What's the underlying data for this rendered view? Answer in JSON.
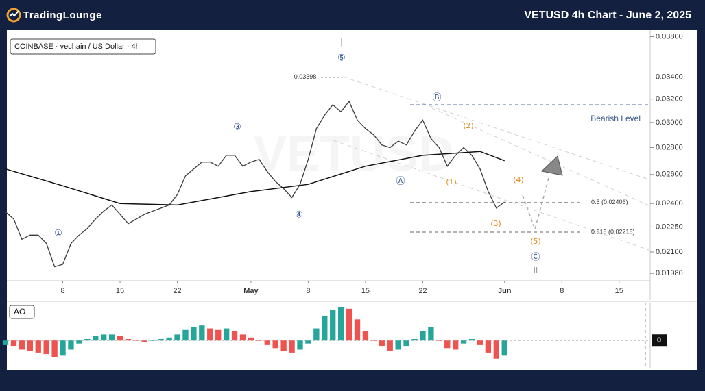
{
  "header": {
    "logo": "TradingLounge",
    "title": "VETUSD 4h Chart - June 2, 2025"
  },
  "chart_data": [
    {
      "type": "line",
      "log_scale": true,
      "grid": false,
      "x": [
        "2025-04-01",
        "2025-04-02",
        "2025-04-03",
        "2025-04-04",
        "2025-04-05",
        "2025-04-06",
        "2025-04-07",
        "2025-04-08",
        "2025-04-09",
        "2025-04-10",
        "2025-04-11",
        "2025-04-12",
        "2025-04-13",
        "2025-04-14",
        "2025-04-15",
        "2025-04-16",
        "2025-04-17",
        "2025-04-18",
        "2025-04-19",
        "2025-04-20",
        "2025-04-21",
        "2025-04-22",
        "2025-04-23",
        "2025-04-24",
        "2025-04-25",
        "2025-04-26",
        "2025-04-27",
        "2025-04-28",
        "2025-04-29",
        "2025-04-30",
        "2025-05-01",
        "2025-05-02",
        "2025-05-03",
        "2025-05-04",
        "2025-05-05",
        "2025-05-06",
        "2025-05-07",
        "2025-05-08",
        "2025-05-09",
        "2025-05-10",
        "2025-05-11",
        "2025-05-12",
        "2025-05-13",
        "2025-05-14",
        "2025-05-15",
        "2025-05-16",
        "2025-05-17",
        "2025-05-18",
        "2025-05-19",
        "2025-05-20",
        "2025-05-21",
        "2025-05-22",
        "2025-05-23",
        "2025-05-24",
        "2025-05-25",
        "2025-05-26",
        "2025-05-27",
        "2025-05-28",
        "2025-05-29",
        "2025-05-30",
        "2025-05-31",
        "2025-06-01"
      ],
      "series": [
        {
          "name": "COINBASE · vechain / US Dollar · 4h",
          "color": "#3a3a3a",
          "values": [
            0.02345,
            0.023,
            0.02175,
            0.022,
            0.022,
            0.0215,
            0.02016,
            0.0203,
            0.0215,
            0.022,
            0.0224,
            0.023,
            0.0235,
            0.0239,
            0.0233,
            0.0227,
            0.023,
            0.0233,
            0.0235,
            0.0237,
            0.0239,
            0.0246,
            0.0259,
            0.0264,
            0.0269,
            0.0269,
            0.0266,
            0.0274,
            0.0274,
            0.0266,
            0.0269,
            0.0271,
            0.0262,
            0.0255,
            0.025,
            0.0244,
            0.0253,
            0.0271,
            0.0295,
            0.0306,
            0.0315,
            0.0309,
            0.0318,
            0.0302,
            0.0295,
            0.029,
            0.0282,
            0.028,
            0.0285,
            0.0282,
            0.0293,
            0.0302,
            0.0287,
            0.028,
            0.0266,
            0.0274,
            0.028,
            0.0274,
            0.0264,
            0.0248,
            0.0237,
            0.0241
          ]
        },
        {
          "color": "#111111",
          "x": [
            "2025-04-01",
            "2025-04-08",
            "2025-04-15",
            "2025-04-22",
            "2025-05-01",
            "2025-05-08",
            "2025-05-15",
            "2025-05-22",
            "2025-05-29",
            "2025-06-01"
          ],
          "values": [
            0.0264,
            0.0252,
            0.024,
            0.0239,
            0.0248,
            0.0253,
            0.0266,
            0.0274,
            0.0277,
            0.027
          ]
        }
      ],
      "xlim": [
        "2025-04-01T08:00",
        "2025-06-18T19:00"
      ],
      "xticks": [
        {
          "value": "2025-04-08",
          "label": "8"
        },
        {
          "value": "2025-04-15",
          "label": "15"
        },
        {
          "value": "2025-04-22",
          "label": "22"
        },
        {
          "value": "2025-05-01",
          "label": "May"
        },
        {
          "value": "2025-05-08",
          "label": "8"
        },
        {
          "value": "2025-05-15",
          "label": "15"
        },
        {
          "value": "2025-05-22",
          "label": "22"
        },
        {
          "value": "2025-06-01",
          "label": "Jun"
        },
        {
          "value": "2025-06-08",
          "label": "8"
        },
        {
          "value": "2025-06-15",
          "label": "15"
        }
      ],
      "ylim": [
        0.0194,
        0.0384
      ],
      "yticks": [
        {
          "value": 0.038,
          "label": "0.03800"
        },
        {
          "value": 0.034,
          "label": "0.03400"
        },
        {
          "value": 0.032,
          "label": "0.03200"
        },
        {
          "value": 0.03,
          "label": "0.03000"
        },
        {
          "value": 0.028,
          "label": "0.02800"
        },
        {
          "value": 0.026,
          "label": "0.02600"
        },
        {
          "value": 0.024,
          "label": "0.02400"
        },
        {
          "value": 0.0225,
          "label": "0.02250"
        },
        {
          "value": 0.021,
          "label": "0.02100"
        },
        {
          "value": 0.0198,
          "label": "0.01980"
        }
      ],
      "levels": [
        {
          "value": 0.02406,
          "label": "0.5 (0.02406)"
        },
        {
          "value": 0.02218,
          "label": "0.618 (0.02218)"
        }
      ],
      "bearish_level": {
        "value": 0.0315,
        "label": "Bearish Level"
      },
      "high": {
        "value": 0.03398,
        "label": "0.03398"
      },
      "annotations": [
        "⑤",
        "I",
        "③",
        "④",
        "①",
        "Ⓑ",
        "Ⓐ",
        "Ⓒ",
        "II",
        "(1)",
        "(2)",
        "(3)",
        "(4)",
        "(5)"
      ]
    },
    {
      "type": "bar",
      "title": "AO",
      "colors": {
        "up": "#26a69a",
        "down": "#ef5350"
      },
      "x": [
        "2025-04-01",
        "2025-04-02",
        "2025-04-03",
        "2025-04-04",
        "2025-04-05",
        "2025-04-06",
        "2025-04-07",
        "2025-04-08",
        "2025-04-09",
        "2025-04-10",
        "2025-04-11",
        "2025-04-12",
        "2025-04-13",
        "2025-04-14",
        "2025-04-15",
        "2025-04-16",
        "2025-04-17",
        "2025-04-18",
        "2025-04-19",
        "2025-04-20",
        "2025-04-21",
        "2025-04-22",
        "2025-04-23",
        "2025-04-24",
        "2025-04-25",
        "2025-04-26",
        "2025-04-27",
        "2025-04-28",
        "2025-04-29",
        "2025-04-30",
        "2025-05-01",
        "2025-05-02",
        "2025-05-03",
        "2025-05-04",
        "2025-05-05",
        "2025-05-06",
        "2025-05-07",
        "2025-05-08",
        "2025-05-09",
        "2025-05-10",
        "2025-05-11",
        "2025-05-12",
        "2025-05-13",
        "2025-05-14",
        "2025-05-15",
        "2025-05-16",
        "2025-05-17",
        "2025-05-18",
        "2025-05-19",
        "2025-05-20",
        "2025-05-21",
        "2025-05-22",
        "2025-05-23",
        "2025-05-24",
        "2025-05-25",
        "2025-05-26",
        "2025-05-27",
        "2025-05-28",
        "2025-05-29",
        "2025-05-30",
        "2025-05-31",
        "2025-06-01"
      ],
      "values": [
        -0.0003,
        -0.0004,
        -0.0006,
        -0.0007,
        -0.0008,
        -0.0009,
        -0.0011,
        -0.001,
        -0.0006,
        -0.0002,
        0.0001,
        0.0003,
        0.0004,
        0.0004,
        0.0003,
        0.0001,
        0.0,
        -0.0001,
        0.0,
        0.0001,
        0.0002,
        0.0004,
        0.0007,
        0.0009,
        0.001,
        0.0008,
        0.0007,
        0.0008,
        0.0006,
        0.0004,
        0.0002,
        0.0,
        -0.0003,
        -0.0005,
        -0.0007,
        -0.0008,
        -0.0006,
        -0.0002,
        0.0008,
        0.0016,
        0.002,
        0.0022,
        0.0021,
        0.0014,
        0.0006,
        0.0,
        -0.0004,
        -0.0007,
        -0.0006,
        -0.0004,
        0.0001,
        0.0006,
        0.0009,
        0.0,
        -0.0005,
        -0.0006,
        -0.0002,
        0.0001,
        -0.0003,
        -0.0008,
        -0.0012,
        -0.001
      ],
      "xlim": [
        "2025-04-01T08:00",
        "2025-06-18T19:00"
      ],
      "ylim": [
        -0.0018,
        0.0025
      ],
      "yticks": [
        0
      ]
    }
  ]
}
